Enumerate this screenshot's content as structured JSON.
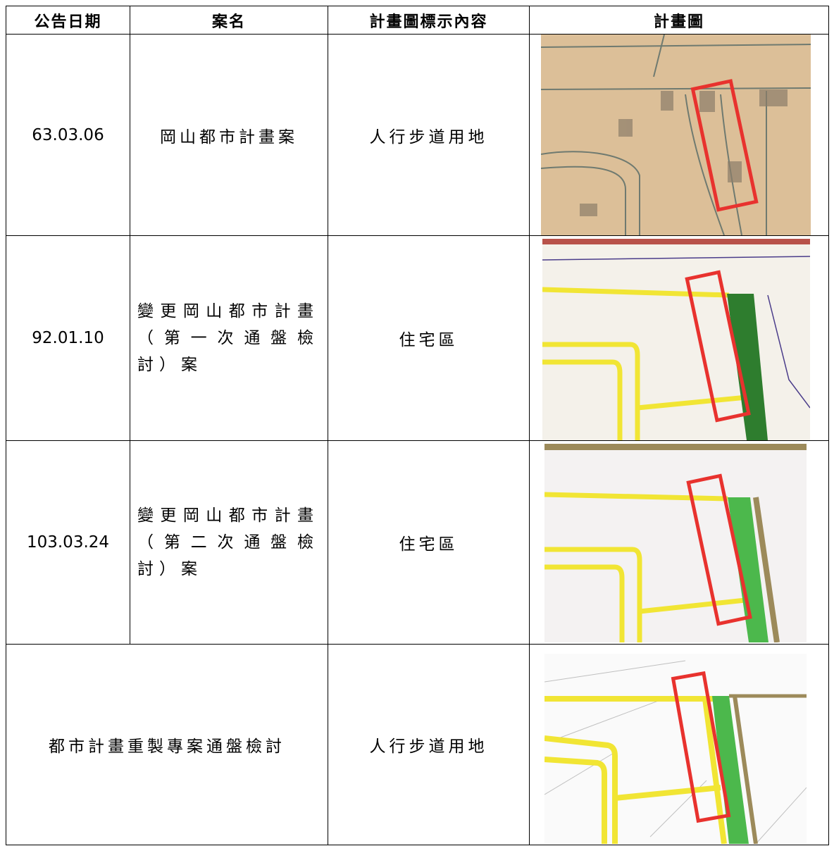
{
  "header": {
    "columns": [
      "公告日期",
      "案名",
      "計畫圖標示內容",
      "計畫圖"
    ]
  },
  "table": {
    "rows": [
      [
        "63.03.06",
        "岡山都市計畫案",
        "人行步道用地"
      ],
      [
        "92.01.10",
        "變更岡山都市計畫（第一次通盤檢討）案",
        "住宅區"
      ],
      [
        "103.03.24",
        "變更岡山都市計畫（第二次通盤檢討）案",
        "住宅區"
      ],
      [
        "都市計畫重製專案通盤檢討",
        "人行步道用地"
      ]
    ]
  }
}
